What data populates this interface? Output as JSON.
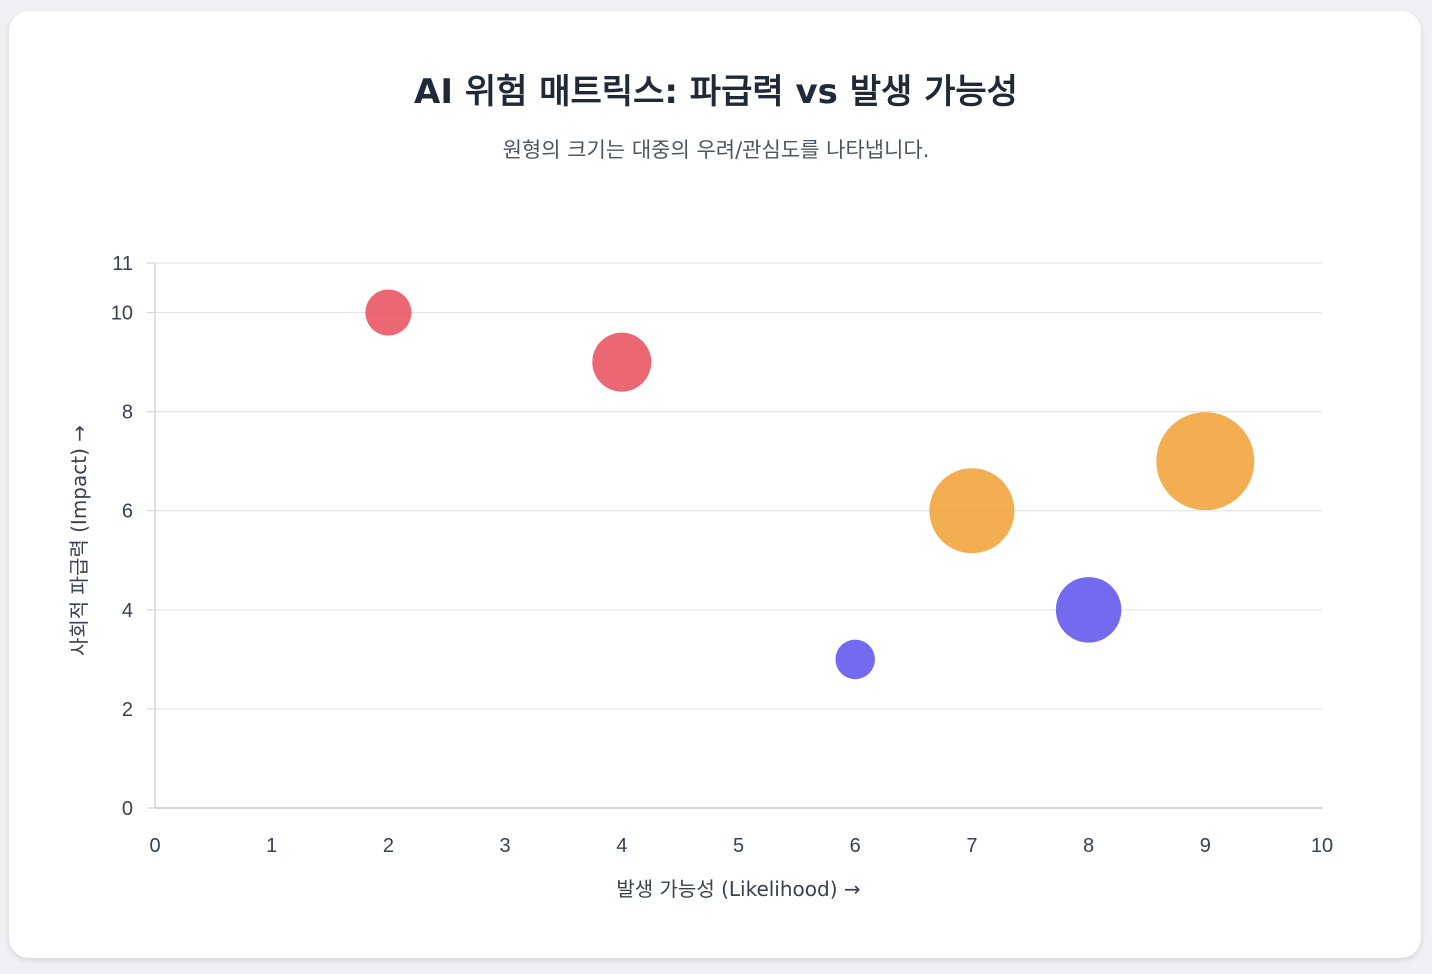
{
  "chart_data": {
    "type": "scatter",
    "title": "AI 위험 매트릭스: 파급력 vs 발생 가능성",
    "subtitle": "원형의 크기는 대중의 우려/관심도를 나타냅니다.",
    "xlabel": "발생 가능성 (Likelihood) →",
    "ylabel": "사회적 파급력 (Impact) →",
    "xlim": [
      0,
      10
    ],
    "ylim": [
      0,
      11
    ],
    "x_ticks": [
      "0",
      "1",
      "2",
      "3",
      "4",
      "5",
      "6",
      "7",
      "8",
      "9",
      "10"
    ],
    "y_ticks": [
      "0",
      "2",
      "4",
      "6",
      "8",
      "10",
      "11"
    ],
    "grid": true,
    "points": [
      {
        "x": 2,
        "y": 10,
        "size": 2,
        "color": "#e74c5a"
      },
      {
        "x": 4,
        "y": 9,
        "size": 3,
        "color": "#e74c5a"
      },
      {
        "x": 6,
        "y": 3,
        "size": 1.5,
        "color": "#5b50ec"
      },
      {
        "x": 7,
        "y": 6,
        "size": 5,
        "color": "#f0a033"
      },
      {
        "x": 8,
        "y": 4,
        "size": 3.5,
        "color": "#5b50ec"
      },
      {
        "x": 9,
        "y": 7,
        "size": 6,
        "color": "#f0a033"
      }
    ]
  }
}
